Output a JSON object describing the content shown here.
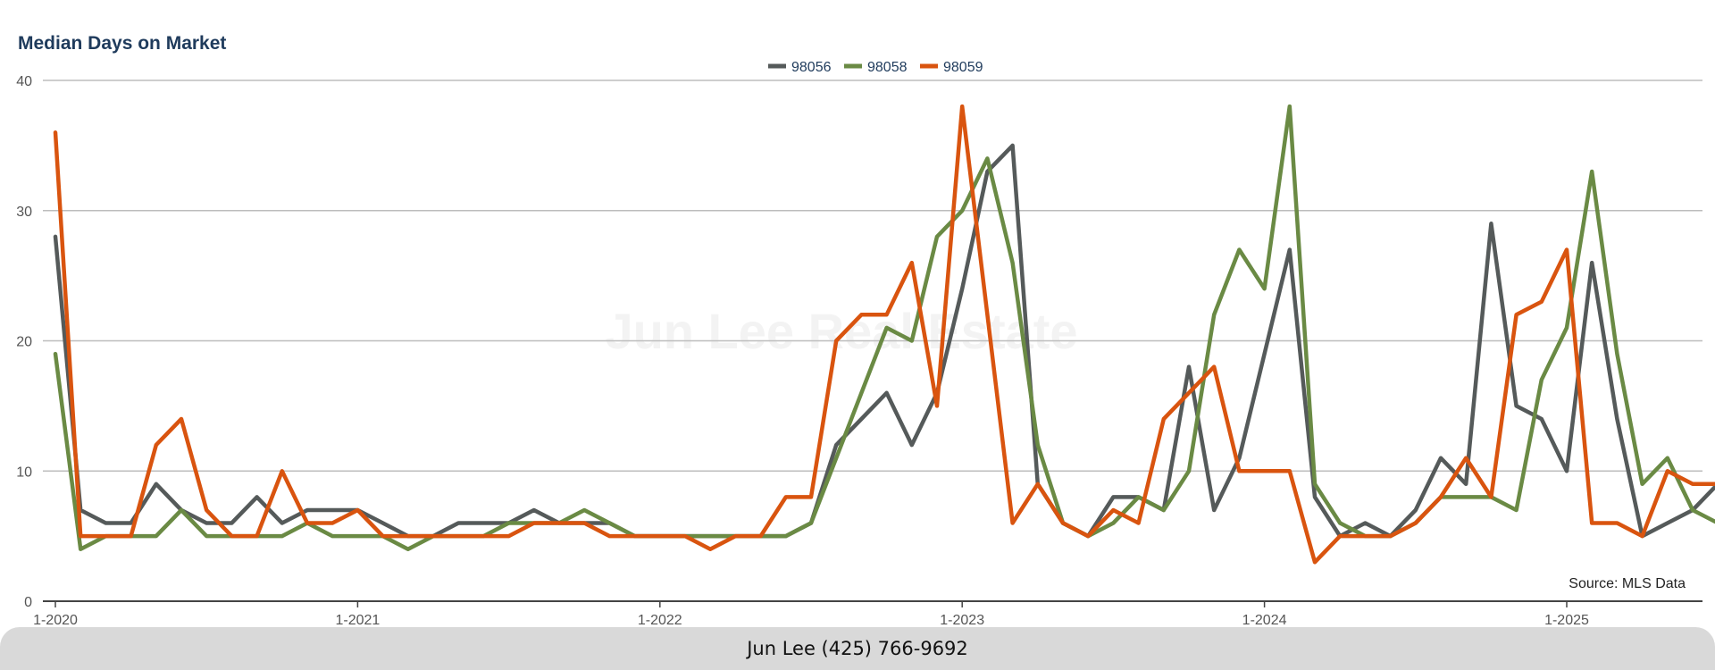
{
  "chart_data": {
    "type": "line",
    "title": "Median Days on Market",
    "ylim": [
      0,
      40
    ],
    "yticks": [
      0,
      10,
      20,
      30,
      40
    ],
    "xtick_labels": [
      "1-2020",
      "1-2021",
      "1-2022",
      "1-2023",
      "1-2024",
      "1-2025"
    ],
    "grid": true,
    "legend_position": "top-center",
    "source": "Source: MLS Data",
    "watermark": "Jun Lee Real Estate",
    "x": [
      "2020-01",
      "2020-02",
      "2020-03",
      "2020-04",
      "2020-05",
      "2020-06",
      "2020-07",
      "2020-08",
      "2020-09",
      "2020-10",
      "2020-11",
      "2020-12",
      "2021-01",
      "2021-02",
      "2021-03",
      "2021-04",
      "2021-05",
      "2021-06",
      "2021-07",
      "2021-08",
      "2021-09",
      "2021-10",
      "2021-11",
      "2021-12",
      "2022-01",
      "2022-02",
      "2022-03",
      "2022-04",
      "2022-05",
      "2022-06",
      "2022-07",
      "2022-08",
      "2022-09",
      "2022-10",
      "2022-11",
      "2022-12",
      "2023-01",
      "2023-02",
      "2023-03",
      "2023-04",
      "2023-05",
      "2023-06",
      "2023-07",
      "2023-08",
      "2023-09",
      "2023-10",
      "2023-11",
      "2023-12",
      "2024-01",
      "2024-02",
      "2024-03",
      "2024-04",
      "2024-05",
      "2024-06",
      "2024-07",
      "2024-08",
      "2024-09",
      "2024-10",
      "2024-11",
      "2024-12",
      "2025-01",
      "2025-02",
      "2025-03",
      "2025-04",
      "2025-05",
      "2025-06",
      "2025-07"
    ],
    "series": [
      {
        "name": "98056",
        "color": "#555a5a",
        "values": [
          28,
          7,
          6,
          6,
          9,
          7,
          6,
          6,
          8,
          6,
          7,
          7,
          7,
          6,
          5,
          5,
          6,
          6,
          6,
          7,
          6,
          6,
          6,
          5,
          5,
          5,
          5,
          5,
          5,
          5,
          6,
          12,
          14,
          16,
          12,
          16,
          24,
          33,
          35,
          9,
          6,
          5,
          8,
          8,
          7,
          18,
          7,
          11,
          19,
          27,
          8,
          5,
          6,
          5,
          7,
          11,
          9,
          29,
          15,
          14,
          10,
          26,
          14,
          5,
          6,
          7,
          9
        ]
      },
      {
        "name": "98058",
        "color": "#6a8a44",
        "values": [
          19,
          4,
          5,
          5,
          5,
          7,
          5,
          5,
          5,
          5,
          6,
          5,
          5,
          5,
          4,
          5,
          5,
          5,
          6,
          6,
          6,
          7,
          6,
          5,
          5,
          5,
          5,
          5,
          5,
          5,
          6,
          11,
          16,
          21,
          20,
          28,
          30,
          34,
          26,
          12,
          6,
          5,
          6,
          8,
          7,
          10,
          22,
          27,
          24,
          38,
          9,
          6,
          5,
          5,
          6,
          8,
          8,
          8,
          7,
          17,
          21,
          33,
          19,
          9,
          11,
          7,
          6
        ]
      },
      {
        "name": "98059",
        "color": "#d9540f",
        "values": [
          36,
          5,
          5,
          5,
          12,
          14,
          7,
          5,
          5,
          10,
          6,
          6,
          7,
          5,
          5,
          5,
          5,
          5,
          5,
          6,
          6,
          6,
          5,
          5,
          5,
          5,
          4,
          5,
          5,
          8,
          8,
          20,
          22,
          22,
          26,
          15,
          38,
          22,
          6,
          9,
          6,
          5,
          7,
          6,
          14,
          16,
          18,
          10,
          10,
          10,
          3,
          5,
          5,
          5,
          6,
          8,
          11,
          8,
          22,
          23,
          27,
          6,
          6,
          5,
          10,
          9,
          9
        ]
      }
    ]
  },
  "footer": {
    "text": "Jun Lee (425) 766-9692"
  }
}
